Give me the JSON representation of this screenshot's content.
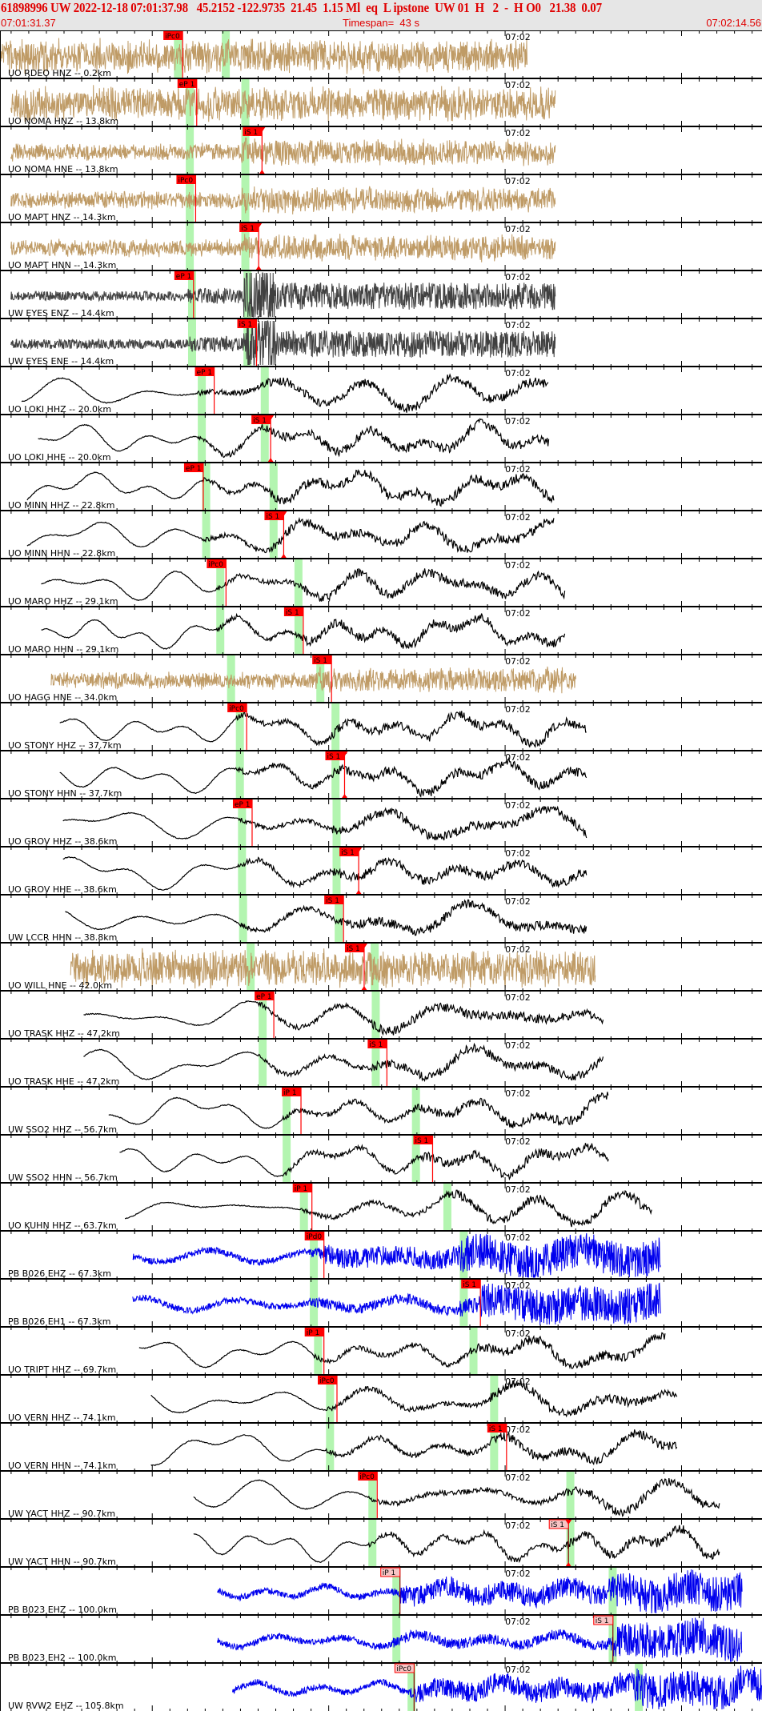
{
  "header": {
    "title": "61898996 UW 2022-12-18 07:01:37.98   45.2152 -122.9735  21.45  1.15 Ml  eq  L ipstone  UW 01  H   2  -  H O0   21.38  0.07",
    "start_time": "07:01:31.37",
    "timespan": "Timespan=  43 s",
    "end_time": "07:02:14.56"
  },
  "tick_label": "07:02",
  "tick_label_time": "07:02:00.00",
  "colors": {
    "tan": "#bf9b66",
    "gray": "#404040",
    "black": "#000000",
    "blue": "#0000ee",
    "pick": "#ff0000",
    "pick_pale": "#f6c4c4",
    "band": "#b3f5b0",
    "header_bg": "#e6e6e6",
    "header_text": "#e00000"
  },
  "panels": [
    {
      "station": "UO RDEO HNZ -- 0.2km",
      "color": "tan",
      "start": "07:01:31.37",
      "end": "07:02:01.25",
      "bands": [
        "07:01:41.23",
        "07:01:43.94"
      ],
      "picks": [
        {
          "label": "iPc0",
          "time": "07:01:41.72",
          "style": "solid"
        }
      ]
    },
    {
      "station": "UO NOMA HNZ -- 13.8km",
      "color": "tan",
      "start": "07:01:31.99",
      "end": "07:02:02.86",
      "bands": [
        "07:01:41.90",
        "07:01:45.05"
      ],
      "picks": [
        {
          "label": "eP 1",
          "time": "07:01:42.52",
          "style": "solid"
        }
      ]
    },
    {
      "station": "UO NOMA HNE -- 13.8km",
      "color": "tan",
      "start": "07:01:31.99",
      "end": "07:02:02.86",
      "bands": [
        "07:01:41.90",
        "07:01:45.05"
      ],
      "picks": [
        {
          "label": "iS 1",
          "time": "07:01:46.22",
          "style": "solid",
          "marker": true
        }
      ]
    },
    {
      "station": "UO MAPT HNZ -- 14.3km",
      "color": "tan",
      "start": "07:01:31.99",
      "end": "07:02:02.86",
      "bands": [
        "07:01:41.90",
        "07:01:45.05"
      ],
      "picks": [
        {
          "label": "iPc0",
          "time": "07:01:42.46",
          "style": "solid"
        }
      ]
    },
    {
      "station": "UO MAPT HNN -- 14.3km",
      "color": "tan",
      "start": "07:01:31.99",
      "end": "07:02:02.86",
      "bands": [
        "07:01:41.90",
        "07:01:45.05"
      ],
      "picks": [
        {
          "label": "iS 1",
          "time": "07:01:46.03",
          "style": "solid",
          "marker": true
        }
      ]
    },
    {
      "station": "UW EYES ENZ -- 14.4km",
      "color": "gray",
      "start": "07:01:31.99",
      "end": "07:02:02.86",
      "bands": [
        "07:01:42.03",
        "07:01:45.17"
      ],
      "picks": [
        {
          "label": "eP 1",
          "time": "07:01:42.34",
          "style": "solid"
        }
      ]
    },
    {
      "station": "UW EYES ENE -- 14.4km",
      "color": "gray",
      "start": "07:01:31.99",
      "end": "07:02:02.86",
      "bands": [
        "07:01:42.03",
        "07:01:45.17"
      ],
      "picks": [
        {
          "label": "iS 1",
          "time": "07:01:45.91",
          "style": "solid"
        }
      ]
    },
    {
      "station": "UO LOKI HHZ -- 20.0km",
      "color": "black",
      "start": "07:01:32.60",
      "end": "07:02:02.48",
      "bands": [
        "07:01:42.58",
        "07:01:46.15"
      ],
      "picks": [
        {
          "label": "eP 1",
          "time": "07:01:43.51",
          "style": "solid"
        }
      ]
    },
    {
      "station": "UO LOKI HHE -- 20.0km",
      "color": "black",
      "start": "07:01:33.53",
      "end": "07:02:02.48",
      "bands": [
        "07:01:42.58",
        "07:01:46.15"
      ],
      "picks": [
        {
          "label": "iS 1",
          "time": "07:01:46.71",
          "style": "solid",
          "marker": true
        }
      ]
    },
    {
      "station": "UO MINN HHZ -- 22.8km",
      "color": "black",
      "start": "07:01:32.91",
      "end": "07:02:02.79",
      "bands": [
        "07:01:42.83",
        "07:01:46.65"
      ],
      "picks": [
        {
          "label": "eP 1",
          "time": "07:01:42.89",
          "style": "solid"
        }
      ]
    },
    {
      "station": "UO MINN HHN -- 22.8km",
      "color": "black",
      "start": "07:01:32.91",
      "end": "07:02:02.79",
      "bands": [
        "07:01:42.83",
        "07:01:46.65"
      ],
      "picks": [
        {
          "label": "iS 1",
          "time": "07:01:47.45",
          "style": "solid",
          "marker": true
        }
      ]
    },
    {
      "station": "UO MARO HHZ -- 29.1km",
      "color": "black",
      "start": "07:01:33.71",
      "end": "07:02:03.40",
      "bands": [
        "07:01:43.63",
        "07:01:48.06"
      ],
      "picks": [
        {
          "label": "iPc0",
          "time": "07:01:44.18",
          "style": "solid"
        }
      ]
    },
    {
      "station": "UO MARO HHN -- 29.1km",
      "color": "black",
      "start": "07:01:33.71",
      "end": "07:02:03.40",
      "bands": [
        "07:01:43.63",
        "07:01:48.06"
      ],
      "picks": [
        {
          "label": "iS 1",
          "time": "07:01:48.56",
          "style": "solid"
        }
      ]
    },
    {
      "station": "UO HAGG HNE -- 34.0km",
      "color": "tan",
      "start": "07:01:34.27",
      "end": "07:02:04.02",
      "bands": [
        "07:01:44.24",
        "07:01:49.30"
      ],
      "picks": [
        {
          "label": "iS 1",
          "time": "07:01:50.16",
          "style": "solid"
        }
      ]
    },
    {
      "station": "UO STONY HHZ -- 37.7km",
      "color": "black",
      "start": "07:01:34.76",
      "end": "07:02:04.64",
      "bands": [
        "07:01:44.74",
        "07:01:50.16"
      ],
      "picks": [
        {
          "label": "iPc0",
          "time": "07:01:45.35",
          "style": "solid"
        }
      ]
    },
    {
      "station": "UO STONY HHN -- 37.7km",
      "color": "black",
      "start": "07:01:34.76",
      "end": "07:02:04.64",
      "bands": [
        "07:01:44.74",
        "07:01:50.16"
      ],
      "picks": [
        {
          "label": "iS 1",
          "time": "07:01:50.90",
          "style": "solid",
          "marker": true
        }
      ]
    },
    {
      "station": "UO GROV HHZ -- 38.6km",
      "color": "black",
      "start": "07:01:34.94",
      "end": "07:02:04.64",
      "bands": [
        "07:01:44.86",
        "07:01:50.22"
      ],
      "picks": [
        {
          "label": "eP 1",
          "time": "07:01:45.66",
          "style": "solid"
        }
      ]
    },
    {
      "station": "UO GROV HHE -- 38.6km",
      "color": "black",
      "start": "07:01:34.94",
      "end": "07:02:04.64",
      "bands": [
        "07:01:44.86",
        "07:01:50.22"
      ],
      "picks": [
        {
          "label": "iS 1",
          "time": "07:01:51.70",
          "style": "solid",
          "marker": true
        }
      ]
    },
    {
      "station": "UW LCCR HHN -- 38.8km",
      "color": "black",
      "start": "07:01:35.07",
      "end": "07:02:04.64",
      "bands": [
        "07:01:44.92",
        "07:01:50.34"
      ],
      "picks": [
        {
          "label": "iS 1",
          "time": "07:01:50.84",
          "style": "solid"
        }
      ]
    },
    {
      "station": "UO WILL HNE -- 42.0km",
      "color": "tan",
      "start": "07:01:35.37",
      "end": "07:02:05.13",
      "bands": [
        "07:01:45.35",
        "07:01:52.38"
      ],
      "picks": [
        {
          "label": "iS 1",
          "time": "07:01:52.01",
          "style": "solid",
          "marker": true
        }
      ]
    },
    {
      "station": "UO TRASK HHZ -- 47.2km",
      "color": "black",
      "start": "07:01:36.11",
      "end": "07:02:05.56",
      "bands": [
        "07:01:46.03",
        "07:01:52.44"
      ],
      "picks": [
        {
          "label": "eP 1",
          "time": "07:01:46.89",
          "style": "solid"
        }
      ]
    },
    {
      "station": "UO TRASK HHE -- 47.2km",
      "color": "black",
      "start": "07:01:36.11",
      "end": "07:02:05.56",
      "bands": [
        "07:01:46.03",
        "07:01:52.44"
      ],
      "picks": [
        {
          "label": "iS 1",
          "time": "07:01:53.30",
          "style": "solid"
        }
      ]
    },
    {
      "station": "UW SSO2 HHZ -- 56.7km",
      "color": "black",
      "start": "07:01:37.53",
      "end": "07:02:05.87",
      "bands": [
        "07:01:47.39",
        "07:01:54.72"
      ],
      "picks": [
        {
          "label": "iP 1",
          "time": "07:01:48.43",
          "style": "solid"
        }
      ]
    },
    {
      "station": "UW SSO2 HHN -- 56.7km",
      "color": "black",
      "start": "07:01:38.15",
      "end": "07:02:05.87",
      "bands": [
        "07:01:47.39",
        "07:01:54.72"
      ],
      "picks": [
        {
          "label": "iS 1",
          "time": "07:01:55.89",
          "style": "solid"
        }
      ]
    },
    {
      "station": "UO KUHN HHZ -- 63.7km",
      "color": "black",
      "start": "07:01:38.45",
      "end": "07:02:08.33",
      "bands": [
        "07:01:48.37",
        "07:01:56.50"
      ],
      "picks": [
        {
          "label": "iP 1",
          "time": "07:01:49.05",
          "style": "solid"
        }
      ]
    },
    {
      "station": "PB B026 EHZ -- 67.3km",
      "color": "blue",
      "start": "07:01:38.89",
      "end": "07:02:08.82",
      "bands": [
        "07:01:48.93",
        "07:01:57.43"
      ],
      "picks": [
        {
          "label": "iPd0",
          "time": "07:01:49.73",
          "style": "solid"
        }
      ]
    },
    {
      "station": "PB B026 EH1 -- 67.3km",
      "color": "blue",
      "start": "07:01:38.89",
      "end": "07:02:08.82",
      "bands": [
        "07:01:48.93",
        "07:01:57.43"
      ],
      "picks": [
        {
          "label": "iS 1",
          "time": "07:01:58.60",
          "style": "solid"
        }
      ]
    },
    {
      "station": "UO TRIPT HHZ -- 69.7km",
      "color": "black",
      "start": "07:01:39.26",
      "end": "07:02:09.07",
      "bands": [
        "07:01:49.17",
        "07:01:57.98"
      ],
      "picks": [
        {
          "label": "iP 1",
          "time": "07:01:49.73",
          "style": "solid"
        }
      ]
    },
    {
      "station": "UO VERN HHZ -- 74.1km",
      "color": "black",
      "start": "07:01:39.93",
      "end": "07:02:09.75",
      "bands": [
        "07:01:49.85",
        "07:01:59.15"
      ],
      "picks": [
        {
          "label": "iPc0",
          "time": "07:01:50.47",
          "style": "solid"
        }
      ]
    },
    {
      "station": "UO VERN HHN -- 74.1km",
      "color": "black",
      "start": "07:01:39.93",
      "end": "07:02:09.75",
      "bands": [
        "07:01:49.85",
        "07:01:59.15"
      ],
      "picks": [
        {
          "label": "iS 1",
          "time": "07:02:00.08",
          "style": "solid"
        }
      ]
    },
    {
      "station": "UW YACT HHZ -- 90.7km",
      "color": "black",
      "start": "07:01:42.34",
      "end": "07:02:12.15",
      "bands": [
        "07:01:52.25",
        "07:02:03.47"
      ],
      "picks": [
        {
          "label": "iPc0",
          "time": "07:01:52.75",
          "style": "solid"
        }
      ]
    },
    {
      "station": "UW YACT HHN -- 90.7km",
      "color": "black",
      "start": "07:01:42.34",
      "end": "07:02:12.15",
      "bands": [
        "07:01:52.25",
        "07:02:03.47"
      ],
      "picks": [
        {
          "label": "iS 1",
          "time": "07:02:03.59",
          "style": "pale",
          "marker": true
        }
      ]
    },
    {
      "station": "PB B023 EHZ -- 100.0km",
      "color": "blue",
      "start": "07:01:43.69",
      "end": "07:02:13.44",
      "bands": [
        "07:01:53.61",
        "07:02:05.87"
      ],
      "picks": [
        {
          "label": "iP 1",
          "time": "07:01:54.04",
          "style": "pale"
        }
      ]
    },
    {
      "station": "PB B023 EH2 -- 100.0km",
      "color": "blue",
      "start": "07:01:43.69",
      "end": "07:02:13.44",
      "bands": [
        "07:01:53.61",
        "07:02:05.87"
      ],
      "picks": [
        {
          "label": "iS 1",
          "time": "07:02:06.11",
          "style": "pale"
        }
      ]
    },
    {
      "station": "UW RVW2 EHZ -- 105.8km",
      "color": "blue",
      "start": "07:01:44.55",
      "end": "07:02:14.56",
      "bands": [
        "07:01:54.47",
        "07:02:07.35"
      ],
      "picks": [
        {
          "label": "iPc0",
          "time": "07:01:54.84",
          "style": "pale"
        }
      ]
    }
  ]
}
